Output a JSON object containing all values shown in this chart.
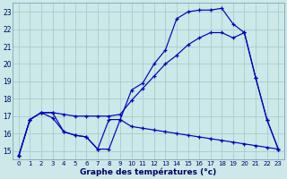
{
  "background_color": "#cce8e8",
  "grid_color": "#aacccc",
  "line_color": "#0000bb",
  "xlabel": "Graphe des températures (°c)",
  "xlim": [
    -0.5,
    23.5
  ],
  "ylim": [
    14.5,
    23.5
  ],
  "yticks": [
    15,
    16,
    17,
    18,
    19,
    20,
    21,
    22,
    23
  ],
  "xticks": [
    0,
    1,
    2,
    3,
    4,
    5,
    6,
    7,
    8,
    9,
    10,
    11,
    12,
    13,
    14,
    15,
    16,
    17,
    18,
    19,
    20,
    21,
    22,
    23
  ],
  "series": [
    {
      "x": [
        0,
        1,
        2,
        3,
        4,
        5,
        6,
        7,
        8,
        9,
        10,
        11,
        12,
        13,
        14,
        15,
        16,
        17,
        18,
        19,
        20,
        21,
        22,
        23
      ],
      "y": [
        14.7,
        16.8,
        17.2,
        16.9,
        16.1,
        15.9,
        15.8,
        15.1,
        15.1,
        16.8,
        16.4,
        16.3,
        16.2,
        16.1,
        16.0,
        15.9,
        15.8,
        15.7,
        15.6,
        15.5,
        15.4,
        15.3,
        15.2,
        15.1
      ]
    },
    {
      "x": [
        0,
        1,
        2,
        3,
        4,
        5,
        6,
        7,
        8,
        9,
        10,
        11,
        12,
        13,
        14,
        15,
        16,
        17,
        18,
        19,
        20,
        21,
        22,
        23
      ],
      "y": [
        14.7,
        16.8,
        17.2,
        17.2,
        17.1,
        17.0,
        17.0,
        17.0,
        17.0,
        17.1,
        17.9,
        18.6,
        19.3,
        20.0,
        20.5,
        21.1,
        21.5,
        21.8,
        21.8,
        21.5,
        21.8,
        19.2,
        16.8,
        15.1
      ]
    },
    {
      "x": [
        0,
        1,
        2,
        3,
        4,
        5,
        6,
        7,
        8,
        9,
        10,
        11,
        12,
        13,
        14,
        15,
        16,
        17,
        18,
        19,
        20,
        21,
        22,
        23
      ],
      "y": [
        14.7,
        16.8,
        17.2,
        17.2,
        16.1,
        15.9,
        15.8,
        15.1,
        16.8,
        16.8,
        18.5,
        18.9,
        20.0,
        20.8,
        22.6,
        23.0,
        23.1,
        23.1,
        23.2,
        22.3,
        21.8,
        19.2,
        16.8,
        15.1
      ]
    }
  ]
}
